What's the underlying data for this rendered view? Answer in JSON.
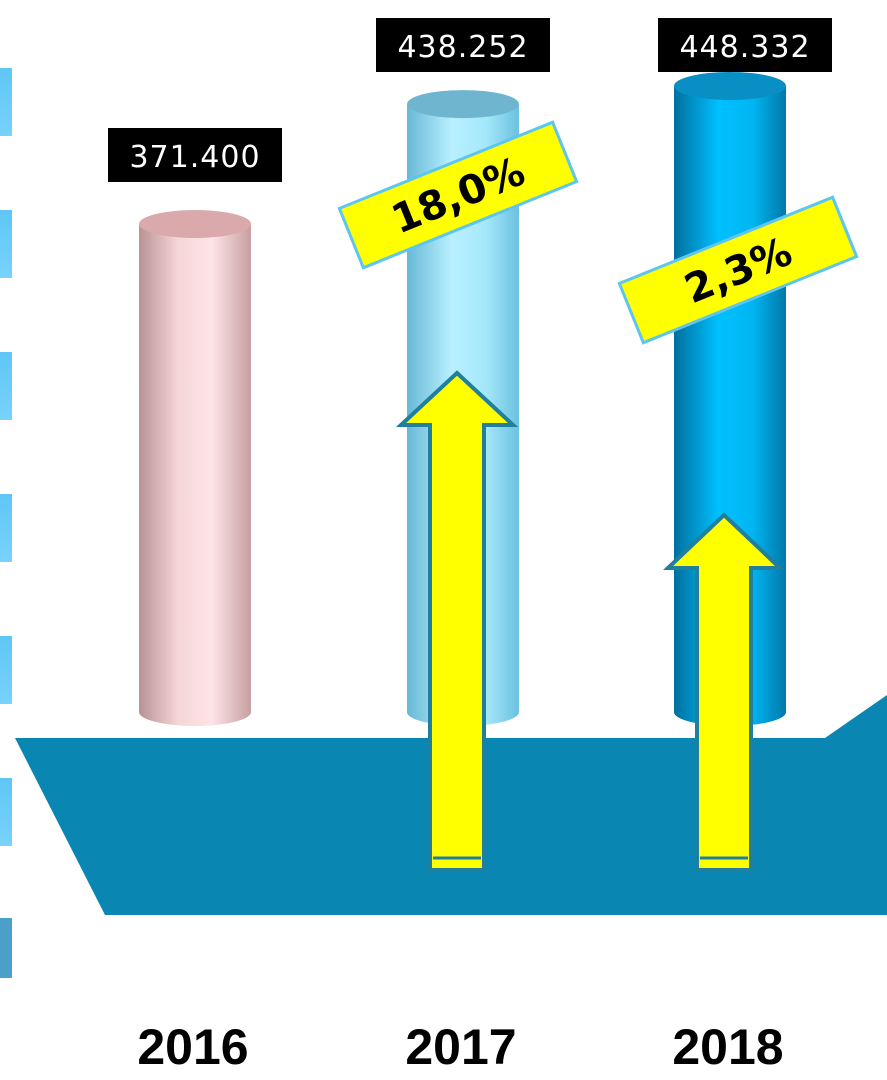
{
  "chart_data": {
    "type": "bar",
    "style": "3d-cylinder",
    "categories": [
      "2016",
      "2017",
      "2018"
    ],
    "values": [
      371400,
      438252,
      448332
    ],
    "value_labels": [
      "371.400",
      "438.252",
      "448.332"
    ],
    "growth_labels": [
      "",
      "18,0%",
      "2,3%"
    ],
    "colors": [
      "#f2c4c6",
      "#8fdcf5",
      "#00aeea"
    ],
    "floor_color": "#0a86b2",
    "arrow_color": "#ffff00",
    "ylim": [
      0,
      480000
    ],
    "grid": false,
    "title": "",
    "xlabel": "",
    "ylabel": ""
  }
}
